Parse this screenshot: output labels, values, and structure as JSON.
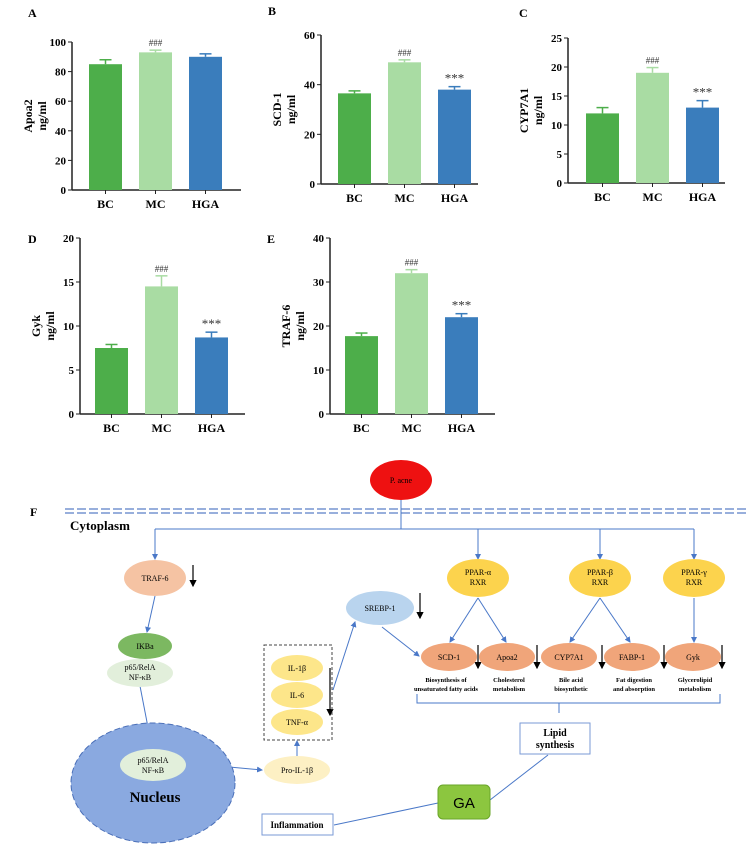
{
  "colors": {
    "BC": "#4dae4a",
    "MC": "#a9dca3",
    "HGA": "#3a7dbc",
    "pacne": "#ee1111",
    "traf": "#f5c3a3",
    "ppar": "#fcd34d",
    "srebp": "#b9d4ee",
    "ikba": "#7cb861",
    "p65": "#e2efdb",
    "cyto": "#fde68a",
    "proil": "#fdf0c4",
    "enzyme": "#f0a57a",
    "nucleus": "#8aa9e0",
    "ga": "#8cc63f",
    "line": "#4a78c8"
  },
  "chart_data": [
    {
      "type": "bar",
      "panel": "A",
      "ylabel": "Apoa2",
      "unit": "ng/ml",
      "categories": [
        "BC",
        "MC",
        "HGA"
      ],
      "values": [
        85,
        93,
        90
      ],
      "errors": [
        3,
        1.5,
        2
      ],
      "annotations": [
        "",
        "###",
        ""
      ],
      "ylim": [
        0,
        100
      ],
      "yticks": [
        0,
        20,
        40,
        60,
        80,
        100
      ]
    },
    {
      "type": "bar",
      "panel": "B",
      "ylabel": "SCD-1",
      "unit": "ng/ml",
      "categories": [
        "BC",
        "MC",
        "HGA"
      ],
      "values": [
        36.5,
        49,
        38
      ],
      "errors": [
        1,
        1,
        1.2
      ],
      "annotations": [
        "",
        "###",
        "***"
      ],
      "ylim": [
        0,
        60
      ],
      "yticks": [
        0,
        20,
        40,
        60
      ]
    },
    {
      "type": "bar",
      "panel": "C",
      "ylabel": "CYP7A1",
      "unit": "ng/ml",
      "categories": [
        "BC",
        "MC",
        "HGA"
      ],
      "values": [
        12,
        19,
        13
      ],
      "errors": [
        1,
        0.9,
        1.2
      ],
      "annotations": [
        "",
        "###",
        "***"
      ],
      "ylim": [
        0,
        25
      ],
      "yticks": [
        0,
        5,
        10,
        15,
        20,
        25
      ]
    },
    {
      "type": "bar",
      "panel": "D",
      "ylabel": "Gyk",
      "unit": "ng/ml",
      "categories": [
        "BC",
        "MC",
        "HGA"
      ],
      "values": [
        7.5,
        14.5,
        8.7
      ],
      "errors": [
        0.4,
        1.2,
        0.6
      ],
      "annotations": [
        "",
        "###",
        "***"
      ],
      "ylim": [
        0,
        20
      ],
      "yticks": [
        0,
        5,
        10,
        15,
        20
      ]
    },
    {
      "type": "bar",
      "panel": "E",
      "ylabel": "TRAF-6",
      "unit": "ng/ml",
      "categories": [
        "BC",
        "MC",
        "HGA"
      ],
      "values": [
        17.7,
        32,
        22
      ],
      "errors": [
        0.7,
        0.8,
        0.8
      ],
      "annotations": [
        "",
        "###",
        "***"
      ],
      "ylim": [
        0,
        40
      ],
      "yticks": [
        0,
        10,
        20,
        30,
        40
      ]
    }
  ],
  "diagram": {
    "panel": "F",
    "pacne": "P. acne",
    "cytoplasm": "Cytoplasm",
    "traf6": "TRAF-6",
    "ikba": "IKBa",
    "p65_line1": "p65/RelA",
    "p65_line2": "NF-κB",
    "nucleus": "Nucleus",
    "il1b": "IL-1β",
    "il6": "IL-6",
    "tnfa": "TNF-α",
    "proil1b": "Pro-IL-1β",
    "srebp1": "SREBP-1",
    "ppar_a": [
      "PPAR-α",
      "RXR"
    ],
    "ppar_b": [
      "PPAR-β",
      "RXR"
    ],
    "ppar_g": [
      "PPAR-γ",
      "RXR"
    ],
    "enzymes": [
      "SCD-1",
      "Apoa2",
      "CYP7A1",
      "FABP-1",
      "Gyk"
    ],
    "functions": [
      [
        "Biosynthesis of",
        "unsaturated fatty acids"
      ],
      [
        "Cholesterol",
        "metabolism"
      ],
      [
        "Bile acid",
        "biosynthetic"
      ],
      [
        "Fat digestion",
        "and absorption"
      ],
      [
        "Glycerolipid",
        "metabolism"
      ]
    ],
    "lipid_line1": "Lipid",
    "lipid_line2": "synthesis",
    "ga": "GA",
    "inflammation": "Inflammation"
  }
}
